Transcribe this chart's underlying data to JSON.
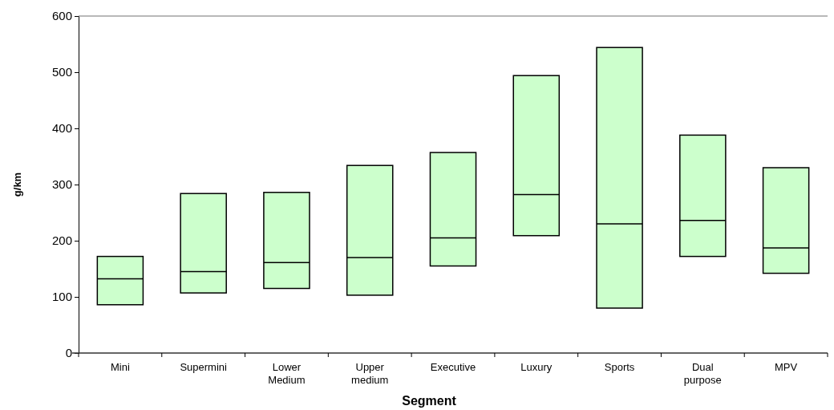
{
  "chart_data": {
    "type": "box",
    "xlabel": "Segment",
    "ylabel": "g/km",
    "categories": [
      "Mini",
      "Supermini",
      "Lower Medium",
      "Upper medium",
      "Executive",
      "Luxury",
      "Sports",
      "Dual purpose",
      "MPV"
    ],
    "boxes": [
      {
        "low": 86,
        "q1": 86,
        "median": 132,
        "q3": 172,
        "high": 172
      },
      {
        "low": 107,
        "q1": 107,
        "median": 145,
        "q3": 284,
        "high": 284
      },
      {
        "low": 115,
        "q1": 115,
        "median": 161,
        "q3": 286,
        "high": 286
      },
      {
        "low": 103,
        "q1": 103,
        "median": 170,
        "q3": 334,
        "high": 334
      },
      {
        "low": 155,
        "q1": 155,
        "median": 205,
        "q3": 357,
        "high": 357
      },
      {
        "low": 209,
        "q1": 209,
        "median": 282,
        "q3": 494,
        "high": 494
      },
      {
        "low": 80,
        "q1": 80,
        "median": 230,
        "q3": 544,
        "high": 544
      },
      {
        "low": 172,
        "q1": 172,
        "median": 236,
        "q3": 388,
        "high": 388
      },
      {
        "low": 142,
        "q1": 142,
        "median": 187,
        "q3": 330,
        "high": 330
      }
    ],
    "color": "#ccffcc",
    "ylim": [
      0,
      600
    ],
    "yticks": [
      0,
      100,
      200,
      300,
      400,
      500,
      600
    ]
  }
}
